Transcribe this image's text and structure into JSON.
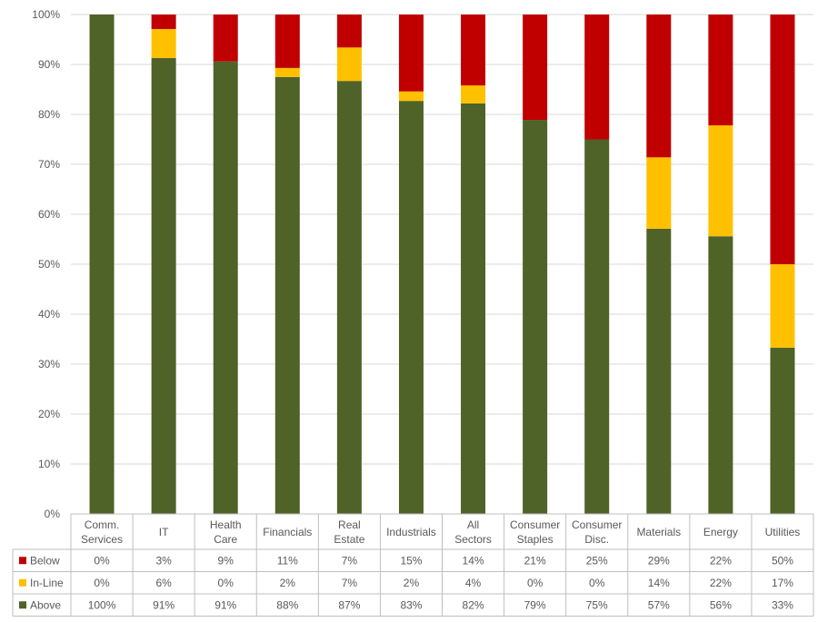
{
  "chart_data": {
    "type": "bar",
    "stacked": true,
    "normalized": true,
    "title": "",
    "xlabel": "",
    "ylabel": "",
    "ylim": [
      0,
      100
    ],
    "y_ticks": [
      "0%",
      "10%",
      "20%",
      "30%",
      "40%",
      "50%",
      "60%",
      "70%",
      "80%",
      "90%",
      "100%"
    ],
    "grid": true,
    "legend_position": "data-table-left",
    "categories": [
      [
        "Comm.",
        "Services"
      ],
      [
        "IT"
      ],
      [
        "Health",
        "Care"
      ],
      [
        "Financials"
      ],
      [
        "Real",
        "Estate"
      ],
      [
        "Industrials"
      ],
      [
        "All",
        "Sectors"
      ],
      [
        "Consumer",
        "Staples"
      ],
      [
        "Consumer",
        "Disc."
      ],
      [
        "Materials"
      ],
      [
        "Energy"
      ],
      [
        "Utilities"
      ]
    ],
    "series": [
      {
        "name": "Above",
        "color": "#4f6228",
        "values": [
          100,
          91.3,
          90.6,
          87.5,
          86.7,
          82.7,
          82.2,
          78.9,
          75.0,
          57.1,
          55.6,
          33.3
        ],
        "labels": [
          "100%",
          "91%",
          "91%",
          "88%",
          "87%",
          "83%",
          "82%",
          "79%",
          "75%",
          "57%",
          "56%",
          "33%"
        ]
      },
      {
        "name": "In-Line",
        "color": "#ffc000",
        "values": [
          0,
          5.8,
          0,
          1.8,
          6.7,
          1.9,
          3.6,
          0,
          0,
          14.3,
          22.2,
          16.7
        ],
        "labels": [
          "0%",
          "6%",
          "0%",
          "2%",
          "7%",
          "2%",
          "4%",
          "0%",
          "0%",
          "14%",
          "22%",
          "17%"
        ]
      },
      {
        "name": "Below",
        "color": "#c00000",
        "values": [
          0,
          2.9,
          9.4,
          10.7,
          6.6,
          15.4,
          14.2,
          21.1,
          25.0,
          28.6,
          22.2,
          50.0
        ],
        "labels": [
          "0%",
          "3%",
          "9%",
          "11%",
          "7%",
          "15%",
          "14%",
          "21%",
          "25%",
          "29%",
          "22%",
          "50%"
        ]
      }
    ]
  }
}
